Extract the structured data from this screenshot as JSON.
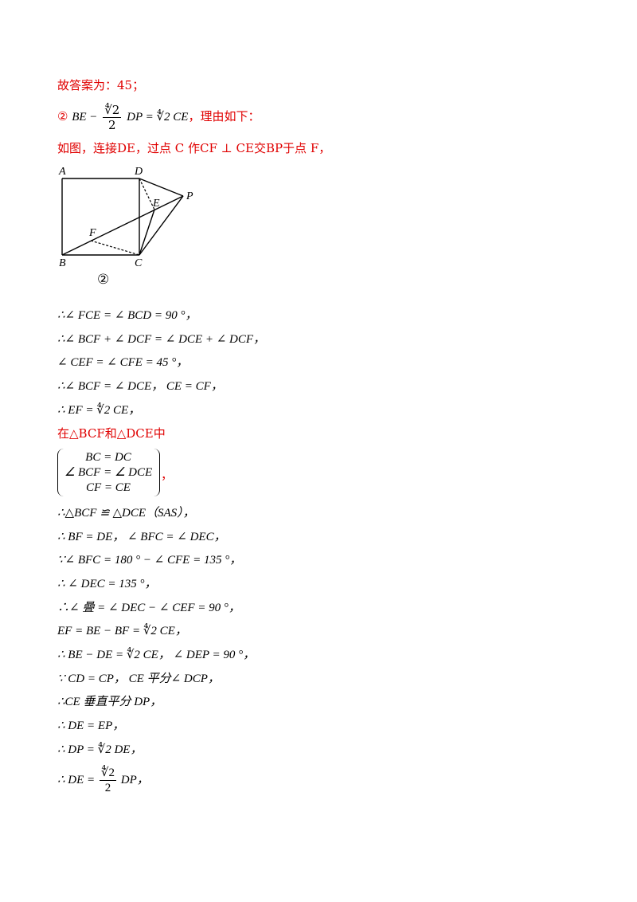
{
  "lines": {
    "l1": "故答案为：45；",
    "l2_prefix": "②",
    "l2_a": "BE −",
    "l2_num": "∜2",
    "l2_den": "2",
    "l2_b": "DP = ∜2 CE",
    "l2_suffix": "，理由如下：",
    "l3": "如图，连接DE，过点 C 作CF ⊥ CE交BP于点 F，",
    "l4": "∴∠ FCE = ∠ BCD = 90 °，",
    "l5": "∴∠ BCF + ∠ DCF = ∠ DCE + ∠ DCF，",
    "l6": "∠ CEF = ∠ CFE = 45 °，",
    "l7": "∴∠ BCF = ∠ DCE， CE = CF，",
    "l8": "∴ EF = ∜2 CE，",
    "l9": "在△BCF和△DCE中",
    "sys1": "BC = DC",
    "sys2": "∠ BCF = ∠ DCE",
    "sys3": "CF = CE",
    "sys_suffix": "，",
    "l10": "∴△BCF ≌ △DCE（SAS），",
    "l11": "∴ BF = DE， ∠ BFC = ∠ DEC，",
    "l12": "∵∠ BFC = 180 ° − ∠ CFE = 135 °，",
    "l13": "∴ ∠ DEC = 135 °，",
    "l14": "∴∠ 曡 = ∠ DEC − ∠ CEF = 90 °，",
    "l15": "EF = BE − BF = ∜2 CE，",
    "l16": "∴ BE − DE = ∜2 CE， ∠ DEP = 90 °，",
    "l17": "∵ CD = CP， CE 平分∠ DCP，",
    "l18": "∴CE 垂直平分 DP，",
    "l19": "∴ DE = EP，",
    "l20": "∴ DP = ∜2 DE，",
    "l21_a": "∴ DE =",
    "l21_num": "∜2",
    "l21_den": "2",
    "l21_b": "DP，"
  },
  "figure": {
    "labels": {
      "A": "A",
      "D": "D",
      "B": "B",
      "C": "C",
      "E": "E",
      "P": "P",
      "F": "F"
    },
    "caption": "②"
  }
}
